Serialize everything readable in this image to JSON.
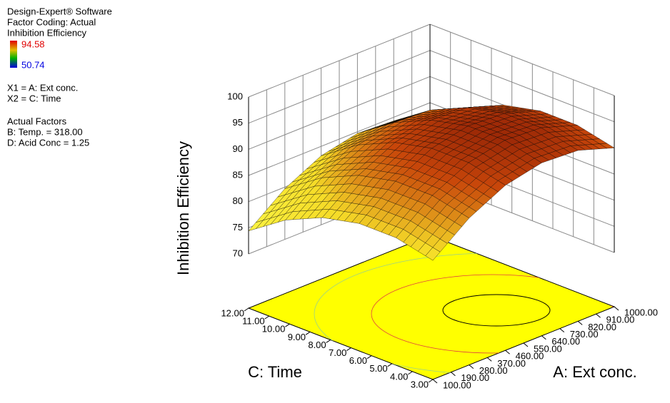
{
  "chart_data": {
    "type": "surface3d",
    "info": [
      "Design-Expert® Software",
      "Factor Coding: Actual",
      "Inhibition Efficiency"
    ],
    "color_scale": {
      "max": 94.58,
      "min": 50.74
    },
    "x_factors": [
      "X1 = A: Ext conc.",
      "X2 = C: Time"
    ],
    "actual_factors_title": "Actual Factors",
    "actual_factors": [
      "B: Temp. = 318.00",
      "D: Acid Conc = 1.25"
    ],
    "zlabel": "Inhibition Efficiency",
    "xlabel": "A: Ext conc.",
    "ylabel": "C: Time",
    "xlim": [
      100,
      1000
    ],
    "xticks": [
      {
        "value": 100,
        "label": "100.00"
      },
      {
        "value": 190,
        "label": "190.00"
      },
      {
        "value": 280,
        "label": "280.00"
      },
      {
        "value": 370,
        "label": "370.00"
      },
      {
        "value": 460,
        "label": "460.00"
      },
      {
        "value": 550,
        "label": "550.00"
      },
      {
        "value": 640,
        "label": "640.00"
      },
      {
        "value": 730,
        "label": "730.00"
      },
      {
        "value": 820,
        "label": "820.00"
      },
      {
        "value": 910,
        "label": "910.00"
      },
      {
        "value": 1000,
        "label": "1000.00"
      }
    ],
    "ylim": [
      3,
      12
    ],
    "yticks": [
      {
        "value": 3,
        "label": "3.00"
      },
      {
        "value": 4,
        "label": "4.00"
      },
      {
        "value": 5,
        "label": "5.00"
      },
      {
        "value": 6,
        "label": "6.00"
      },
      {
        "value": 7,
        "label": "7.00"
      },
      {
        "value": 8,
        "label": "8.00"
      },
      {
        "value": 9,
        "label": "9.00"
      },
      {
        "value": 10,
        "label": "10.00"
      },
      {
        "value": 11,
        "label": "11.00"
      },
      {
        "value": 12,
        "label": "12.00"
      }
    ],
    "zlim": [
      70,
      100
    ],
    "zticks": [
      70,
      75,
      80,
      85,
      90,
      95,
      100
    ],
    "surface": {
      "a": [
        100,
        280,
        460,
        640,
        820,
        1000
      ],
      "c": [
        3,
        4.8,
        6.6,
        8.4,
        10.2,
        12
      ],
      "z": [
        [
          82.4,
          87.7,
          91.2,
          92.7,
          92.3,
          90.0
        ],
        [
          84.0,
          89.3,
          92.8,
          94.3,
          93.9,
          91.6
        ],
        [
          84.0,
          89.3,
          92.8,
          94.3,
          93.9,
          91.6
        ],
        [
          82.4,
          87.7,
          91.2,
          92.7,
          92.3,
          90.0
        ],
        [
          79.2,
          84.5,
          88.0,
          89.5,
          89.1,
          86.8
        ],
        [
          74.4,
          79.7,
          83.2,
          84.7,
          84.3,
          82.0
        ]
      ]
    }
  }
}
